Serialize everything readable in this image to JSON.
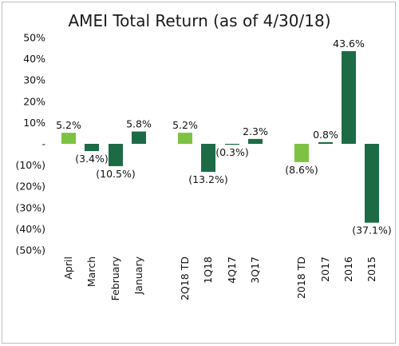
{
  "chart_data": {
    "type": "bar",
    "title": "AMEI Total Return (as of 4/30/18)",
    "ylim": [
      -50,
      50
    ],
    "y_ticks": [
      "50%",
      "40%",
      "30%",
      "20%",
      "10%",
      "-",
      "(10%)",
      "(20%)",
      "(30%)",
      "(40%)",
      "(50%)"
    ],
    "y_tick_values": [
      50,
      40,
      30,
      20,
      10,
      0,
      -10,
      -20,
      -30,
      -40,
      -50
    ],
    "grid": false,
    "colors": {
      "light": "#7dc242",
      "dark": "#1d6b46"
    },
    "categories": [
      "April",
      "March",
      "February",
      "January",
      "2Q18 TD",
      "1Q18",
      "4Q17",
      "3Q17",
      "2018 TD",
      "2017",
      "2016",
      "2015"
    ],
    "values": [
      5.2,
      -3.4,
      -10.5,
      5.8,
      5.2,
      -13.2,
      -0.3,
      2.3,
      -8.6,
      0.8,
      43.6,
      -37.1
    ],
    "labels": [
      "5.2%",
      "(3.4%)",
      "(10.5%)",
      "5.8%",
      "5.2%",
      "(13.2%)",
      "(0.3%)",
      "2.3%",
      "(8.6%)",
      "0.8%",
      "43.6%",
      "(37.1%)"
    ],
    "bar_colors": [
      "light",
      "dark",
      "dark",
      "dark",
      "light",
      "dark",
      "dark",
      "dark",
      "light",
      "dark",
      "dark",
      "dark"
    ]
  }
}
